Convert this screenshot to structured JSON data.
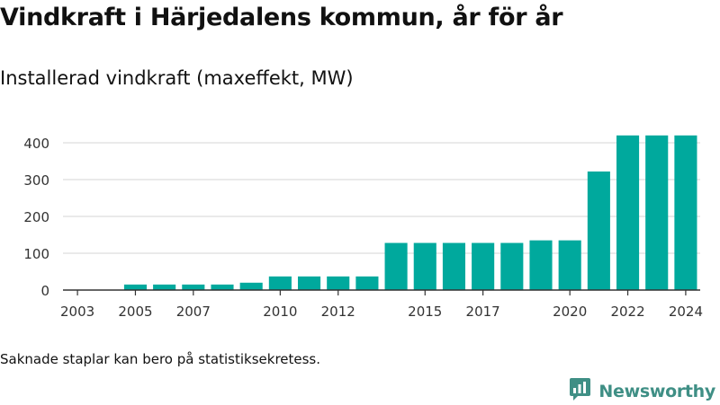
{
  "header": {
    "title": "Vindkraft i Härjedalens kommun, år för år",
    "subtitle": "Installerad vindkraft (maxeffekt, MW)"
  },
  "footer": {
    "note": "Saknade staplar kan bero på statistiksekretess.",
    "brand": "Newsworthy"
  },
  "colors": {
    "bar": "#00a99d",
    "grid": "#dddddd",
    "axis": "#333333",
    "brand": "#3f8f85"
  },
  "chart_data": {
    "type": "bar",
    "categories": [
      "2003",
      "2004",
      "2005",
      "2006",
      "2007",
      "2008",
      "2009",
      "2010",
      "2011",
      "2012",
      "2013",
      "2014",
      "2015",
      "2016",
      "2017",
      "2018",
      "2019",
      "2020",
      "2021",
      "2022",
      "2023",
      "2024"
    ],
    "values": [
      null,
      null,
      15,
      15,
      15,
      15,
      20,
      37,
      37,
      37,
      37,
      128,
      128,
      128,
      128,
      128,
      135,
      135,
      322,
      420,
      420,
      420
    ],
    "x_tick_labels": [
      "2003",
      "2005",
      "2007",
      "2010",
      "2012",
      "2015",
      "2017",
      "2020",
      "2022",
      "2024"
    ],
    "y_ticks": [
      0,
      100,
      200,
      300,
      400
    ],
    "ylim": [
      0,
      450
    ],
    "grid": true
  }
}
